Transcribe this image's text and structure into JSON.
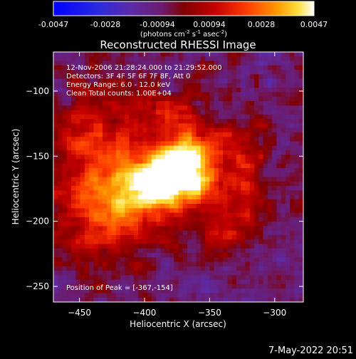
{
  "colorbar": {
    "tick_labels": [
      "-0.0047",
      "-0.0028",
      "-0.00094",
      "0.00094",
      "0.0028",
      "0.0047"
    ],
    "unit_label": "(photons cm",
    "unit_exp1": "-2",
    "unit_mid": " s",
    "unit_exp2": "-1",
    "unit_mid2": " asec",
    "unit_exp3": "-2",
    "unit_close": ")"
  },
  "annotations": {
    "time_range": "12-Nov-2006 21:28:24.000 to 21:29:52.000",
    "detectors": "Detectors: 3F 4F 5F 6F 7F 8F, Att 0",
    "energy": "Energy Range: 6.0 - 12.0 keV",
    "clean": "Clean     Total counts: 1.00E+04",
    "peak": "Position of Peak = [-367,-154]"
  },
  "footer": {
    "timestamp": "7-May-2022 20:51"
  },
  "chart_data": {
    "type": "heatmap",
    "title": "Reconstructed RHESSI Image",
    "xlabel": "Heliocentric X (arcsec)",
    "ylabel": "Heliocentric Y (arcsec)",
    "xlim": [
      -470,
      -278
    ],
    "ylim": [
      -262,
      -70
    ],
    "x_ticks": [
      -450,
      -400,
      -350,
      -300
    ],
    "y_ticks": [
      -100,
      -150,
      -200,
      -250
    ],
    "x_tick_labels": [
      "−450",
      "−400",
      "−350",
      "−300"
    ],
    "y_tick_labels": [
      "−100",
      "−150",
      "−200",
      "−250"
    ],
    "grid": false,
    "value_range": [
      -0.0047,
      0.0047
    ],
    "peak": {
      "x": -367,
      "y": -154
    },
    "sources": [
      {
        "x": -367,
        "y": -154,
        "sx": 14,
        "sy": 18,
        "amp": 0.0044
      },
      {
        "x": -385,
        "y": -168,
        "sx": 18,
        "sy": 15,
        "amp": 0.0036
      },
      {
        "x": -405,
        "y": -180,
        "sx": 22,
        "sy": 18,
        "amp": 0.0026
      },
      {
        "x": -425,
        "y": -140,
        "sx": 30,
        "sy": 28,
        "amp": 0.0018
      },
      {
        "x": -425,
        "y": -200,
        "sx": 30,
        "sy": 22,
        "amp": 0.0018
      },
      {
        "x": -335,
        "y": -195,
        "sx": 18,
        "sy": 22,
        "amp": 0.0021
      },
      {
        "x": -330,
        "y": -150,
        "sx": 22,
        "sy": 18,
        "amp": 0.0016
      },
      {
        "x": -380,
        "y": -115,
        "sx": 26,
        "sy": 14,
        "amp": 0.0013
      },
      {
        "x": -445,
        "y": -165,
        "sx": 20,
        "sy": 40,
        "amp": 0.0013
      }
    ]
  }
}
